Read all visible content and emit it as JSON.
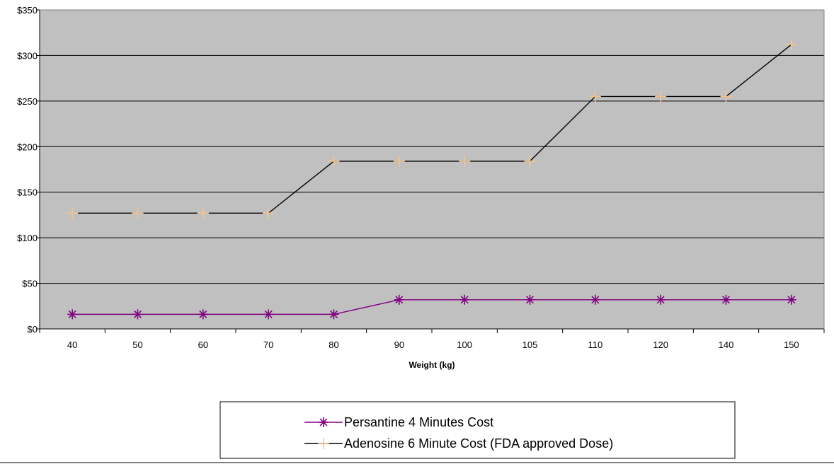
{
  "chart_data": {
    "type": "line",
    "title": "",
    "xlabel": "Weight (kg)",
    "ylabel": "",
    "categories": [
      "40",
      "50",
      "60",
      "70",
      "80",
      "90",
      "100",
      "105",
      "110",
      "120",
      "140",
      "150"
    ],
    "ylim": [
      0,
      350
    ],
    "ytick_step": 50,
    "ytick_labels": [
      "$0",
      "$50",
      "$100",
      "$150",
      "$200",
      "$250",
      "$300",
      "$350"
    ],
    "grid": true,
    "legend_position": "bottom",
    "plot_background": "#c0c0c0",
    "series": [
      {
        "name": "Persantine 4 Minutes Cost",
        "color": "#800080",
        "marker_color": "#800080",
        "marker": "asterisk",
        "values": [
          16,
          16,
          16,
          16,
          16,
          32,
          32,
          32,
          32,
          32,
          32,
          32
        ]
      },
      {
        "name": "Adenosine 6 Minute Cost (FDA approved Dose)",
        "color": "#000000",
        "marker_color": "#f5c38c",
        "marker": "plus",
        "values": [
          127,
          127,
          127,
          127,
          184,
          184,
          184,
          184,
          255,
          255,
          255,
          312
        ]
      }
    ]
  }
}
